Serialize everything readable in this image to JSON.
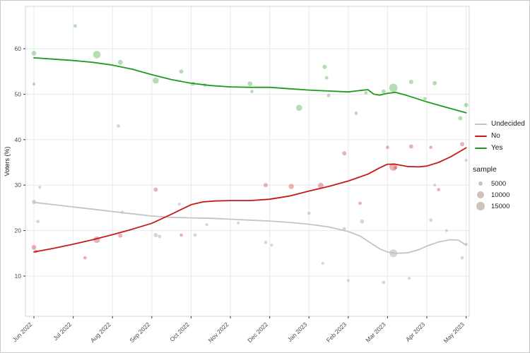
{
  "figure": {
    "ylabel": "Voters (%)"
  },
  "legend": {
    "series": [
      {
        "label": "Undecided",
        "color": "#c4c4c4"
      },
      {
        "label": "No",
        "color": "#c41a1a"
      },
      {
        "label": "Yes",
        "color": "#1e9b1e"
      }
    ],
    "sample": {
      "title": "sample",
      "color": "#a59081",
      "items": [
        {
          "label": "5000",
          "n": 5000
        },
        {
          "label": "10000",
          "n": 10000
        },
        {
          "label": "15000",
          "n": 15000
        }
      ]
    }
  },
  "chart_data": {
    "type": "scatter",
    "title": "",
    "xlabel": "",
    "ylabel": "Voters (%)",
    "grid": true,
    "legend_position": "right",
    "x_tick_labels": [
      "Jun 2022",
      "Jul 2022",
      "Aug 2022",
      "Sep 2022",
      "Oct 2022",
      "Nov 2022",
      "Dec 2022",
      "Jan 2023",
      "Feb 2023",
      "Mar 2023",
      "Apr 2023",
      "May 2023"
    ],
    "y_ticks": [
      10,
      20,
      30,
      40,
      50,
      60
    ],
    "ylim": [
      1,
      69
    ],
    "point_opacity": 0.42,
    "grid_color": "#e9e9e9",
    "panel_border_color": "#d6d6d6",
    "tick_color": "#333333",
    "tick_label_color": "#4d4d4d",
    "series": [
      {
        "name": "Undecided",
        "color": "#c4c4c4",
        "point_color": "#9e9e9e",
        "line": [
          [
            0,
            26.2
          ],
          [
            0.5,
            25.7
          ],
          [
            1,
            25.2
          ],
          [
            1.5,
            24.7
          ],
          [
            2,
            24.2
          ],
          [
            2.5,
            23.7
          ],
          [
            3,
            23.2
          ],
          [
            3.5,
            22.9
          ],
          [
            4,
            22.8
          ],
          [
            4.5,
            22.7
          ],
          [
            5,
            22.5
          ],
          [
            5.5,
            22.3
          ],
          [
            6,
            22.1
          ],
          [
            6.5,
            21.8
          ],
          [
            7,
            21.4
          ],
          [
            7.5,
            20.8
          ],
          [
            8,
            19.8
          ],
          [
            8.3,
            18.8
          ],
          [
            8.6,
            17.1
          ],
          [
            8.8,
            16.0
          ],
          [
            9,
            15.3
          ],
          [
            9.2,
            15.0
          ],
          [
            9.5,
            15.1
          ],
          [
            9.8,
            15.8
          ],
          [
            10,
            16.6
          ],
          [
            10.3,
            17.5
          ],
          [
            10.6,
            18.0
          ],
          [
            10.8,
            17.9
          ],
          [
            11,
            16.8
          ]
        ],
        "points": [
          [
            0,
            26.3,
            4000
          ],
          [
            0.1,
            22.0,
            2500
          ],
          [
            0.15,
            29.5,
            2000
          ],
          [
            2.15,
            43.0,
            2500
          ],
          [
            2.25,
            24.0,
            2500
          ],
          [
            3.1,
            19.0,
            4000
          ],
          [
            3.2,
            18.7,
            2500
          ],
          [
            3.7,
            25.8,
            2000
          ],
          [
            4.1,
            19.0,
            2500
          ],
          [
            4.4,
            21.3,
            2000
          ],
          [
            5.2,
            21.7,
            2000
          ],
          [
            5.9,
            17.4,
            2500
          ],
          [
            6.05,
            16.8,
            2000
          ],
          [
            7.0,
            23.8,
            2500
          ],
          [
            7.35,
            12.8,
            2000
          ],
          [
            7.9,
            20.4,
            2500
          ],
          [
            8.0,
            9.0,
            2000
          ],
          [
            8.35,
            22.0,
            4000
          ],
          [
            8.9,
            8.6,
            2500
          ],
          [
            9.15,
            15.0,
            13000
          ],
          [
            9.55,
            9.5,
            2000
          ],
          [
            10.1,
            22.3,
            2500
          ],
          [
            10.2,
            30.0,
            2000
          ],
          [
            10.5,
            20.0,
            2000
          ],
          [
            10.9,
            14.0,
            2500
          ],
          [
            11.0,
            17.0,
            2500
          ],
          [
            11.0,
            35.5,
            2000
          ]
        ]
      },
      {
        "name": "No",
        "color": "#c41a1a",
        "point_color": "#d04848",
        "line": [
          [
            0,
            15.3
          ],
          [
            0.5,
            16.1
          ],
          [
            1,
            17.0
          ],
          [
            1.5,
            18.0
          ],
          [
            2,
            19.1
          ],
          [
            2.5,
            20.3
          ],
          [
            3,
            21.6
          ],
          [
            3.5,
            23.6
          ],
          [
            4,
            25.7
          ],
          [
            4.3,
            26.3
          ],
          [
            4.6,
            26.5
          ],
          [
            5,
            26.6
          ],
          [
            5.5,
            26.6
          ],
          [
            6,
            26.9
          ],
          [
            6.5,
            27.6
          ],
          [
            7,
            28.7
          ],
          [
            7.5,
            29.7
          ],
          [
            8,
            30.9
          ],
          [
            8.5,
            32.4
          ],
          [
            8.8,
            33.8
          ],
          [
            9,
            34.6
          ],
          [
            9.2,
            34.6
          ],
          [
            9.5,
            34.1
          ],
          [
            9.8,
            34.0
          ],
          [
            10,
            34.2
          ],
          [
            10.3,
            35.0
          ],
          [
            10.6,
            36.2
          ],
          [
            11,
            38.2
          ]
        ],
        "points": [
          [
            0,
            16.3,
            5000
          ],
          [
            0.05,
            15.4,
            2500
          ],
          [
            1.3,
            14.0,
            2500
          ],
          [
            1.6,
            18.0,
            9000
          ],
          [
            2.2,
            18.9,
            4000
          ],
          [
            3.1,
            29.0,
            4000
          ],
          [
            3.75,
            19.0,
            2500
          ],
          [
            5.9,
            30.0,
            4000
          ],
          [
            6.55,
            29.7,
            6000
          ],
          [
            7.3,
            29.9,
            7000
          ],
          [
            7.9,
            37.0,
            4000
          ],
          [
            8.3,
            26.0,
            2500
          ],
          [
            9.0,
            38.3,
            2500
          ],
          [
            9.15,
            34.0,
            13000
          ],
          [
            9.2,
            33.8,
            2500
          ],
          [
            9.6,
            38.5,
            4000
          ],
          [
            10.1,
            38.3,
            2500
          ],
          [
            10.3,
            29.0,
            2500
          ],
          [
            10.9,
            39.0,
            4000
          ]
        ]
      },
      {
        "name": "Yes",
        "color": "#1e9b1e",
        "point_color": "#4daf4d",
        "line": [
          [
            0,
            58.0
          ],
          [
            0.5,
            57.7
          ],
          [
            1,
            57.4
          ],
          [
            1.5,
            57.0
          ],
          [
            2,
            56.4
          ],
          [
            2.5,
            55.5
          ],
          [
            3,
            54.3
          ],
          [
            3.5,
            53.2
          ],
          [
            4,
            52.4
          ],
          [
            4.5,
            51.9
          ],
          [
            5,
            51.6
          ],
          [
            5.5,
            51.5
          ],
          [
            6,
            51.5
          ],
          [
            6.5,
            51.2
          ],
          [
            7,
            50.9
          ],
          [
            7.5,
            50.7
          ],
          [
            8,
            50.5
          ],
          [
            8.3,
            50.8
          ],
          [
            8.5,
            51.0
          ],
          [
            8.65,
            50.0
          ],
          [
            8.8,
            49.8
          ],
          [
            9,
            50.2
          ],
          [
            9.2,
            50.4
          ],
          [
            9.5,
            49.7
          ],
          [
            10,
            48.3
          ],
          [
            10.5,
            47.1
          ],
          [
            11,
            45.9
          ]
        ],
        "points": [
          [
            0,
            59.0,
            5000
          ],
          [
            0.0,
            52.2,
            2000
          ],
          [
            1.05,
            65.0,
            2500
          ],
          [
            1.6,
            58.7,
            12000
          ],
          [
            2.2,
            57.0,
            5000
          ],
          [
            3.1,
            53.0,
            8000
          ],
          [
            3.75,
            55.0,
            4000
          ],
          [
            4.05,
            52.3,
            4000
          ],
          [
            4.35,
            52.0,
            2500
          ],
          [
            5.5,
            52.3,
            5000
          ],
          [
            5.55,
            50.6,
            2500
          ],
          [
            6.75,
            47.0,
            8000
          ],
          [
            7.4,
            56.0,
            4000
          ],
          [
            7.45,
            53.6,
            2500
          ],
          [
            7.5,
            49.7,
            2500
          ],
          [
            8.2,
            45.8,
            2500
          ],
          [
            8.45,
            50.3,
            2500
          ],
          [
            8.9,
            50.6,
            4000
          ],
          [
            9.15,
            51.4,
            15000
          ],
          [
            9.6,
            52.7,
            4000
          ],
          [
            9.95,
            49.0,
            2500
          ],
          [
            10.2,
            52.4,
            4000
          ],
          [
            10.85,
            44.7,
            4000
          ],
          [
            11.0,
            47.6,
            4000
          ]
        ]
      }
    ]
  }
}
